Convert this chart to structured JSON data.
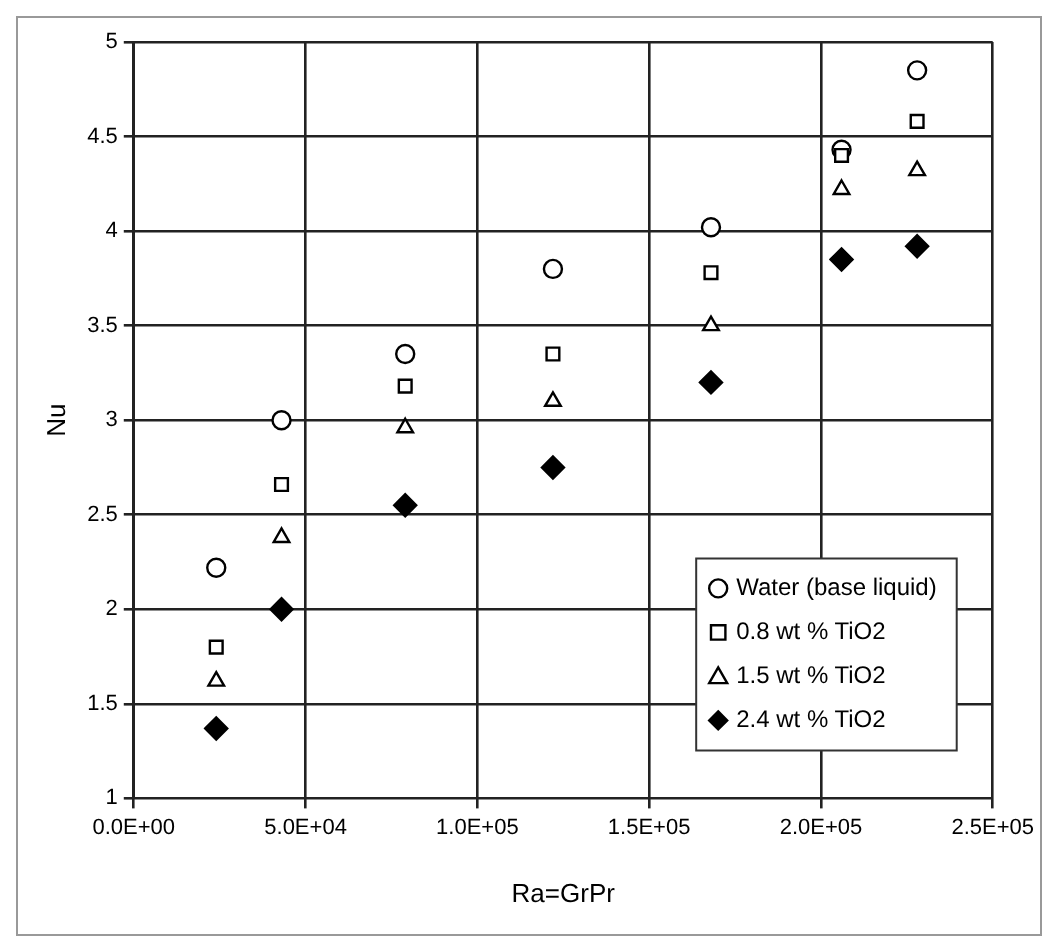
{
  "chart_data": {
    "type": "scatter",
    "xlabel": "Ra=GrPr",
    "ylabel": "Nu",
    "x": [
      24000,
      43000,
      79000,
      122000,
      168000,
      206000,
      228000
    ],
    "series": [
      {
        "name": "Water (base liquid)",
        "color": "#000000",
        "marker": "circle",
        "values": [
          2.22,
          3.0,
          3.35,
          3.8,
          4.02,
          4.43,
          4.85
        ]
      },
      {
        "name": "0.8 wt % TiO2",
        "color": "#000000",
        "marker": "square",
        "values": [
          1.8,
          2.66,
          3.18,
          3.35,
          3.78,
          4.4,
          4.58
        ]
      },
      {
        "name": "1.5 wt % TiO2",
        "color": "#000000",
        "marker": "triangle",
        "values": [
          1.62,
          2.38,
          2.96,
          3.1,
          3.5,
          4.22,
          4.32
        ]
      },
      {
        "name": "2.4 wt % TiO2",
        "color": "#000000",
        "marker": "diamond",
        "values": [
          1.37,
          2.0,
          2.55,
          2.75,
          3.2,
          3.85,
          3.92
        ]
      }
    ],
    "xlim": [
      0,
      250000
    ],
    "xticks": [
      {
        "value": 0,
        "label": "0.0E+00"
      },
      {
        "value": 50000,
        "label": "5.0E+04"
      },
      {
        "value": 100000,
        "label": "1.0E+05"
      },
      {
        "value": 150000,
        "label": "1.5E+05"
      },
      {
        "value": 200000,
        "label": "2.0E+05"
      },
      {
        "value": 250000,
        "label": "2.5E+05"
      }
    ],
    "ylim": [
      1,
      5
    ],
    "yticks": [
      1,
      1.5,
      2,
      2.5,
      3,
      3.5,
      4,
      4.5,
      5
    ],
    "grid": true,
    "legend": "bottom right"
  }
}
